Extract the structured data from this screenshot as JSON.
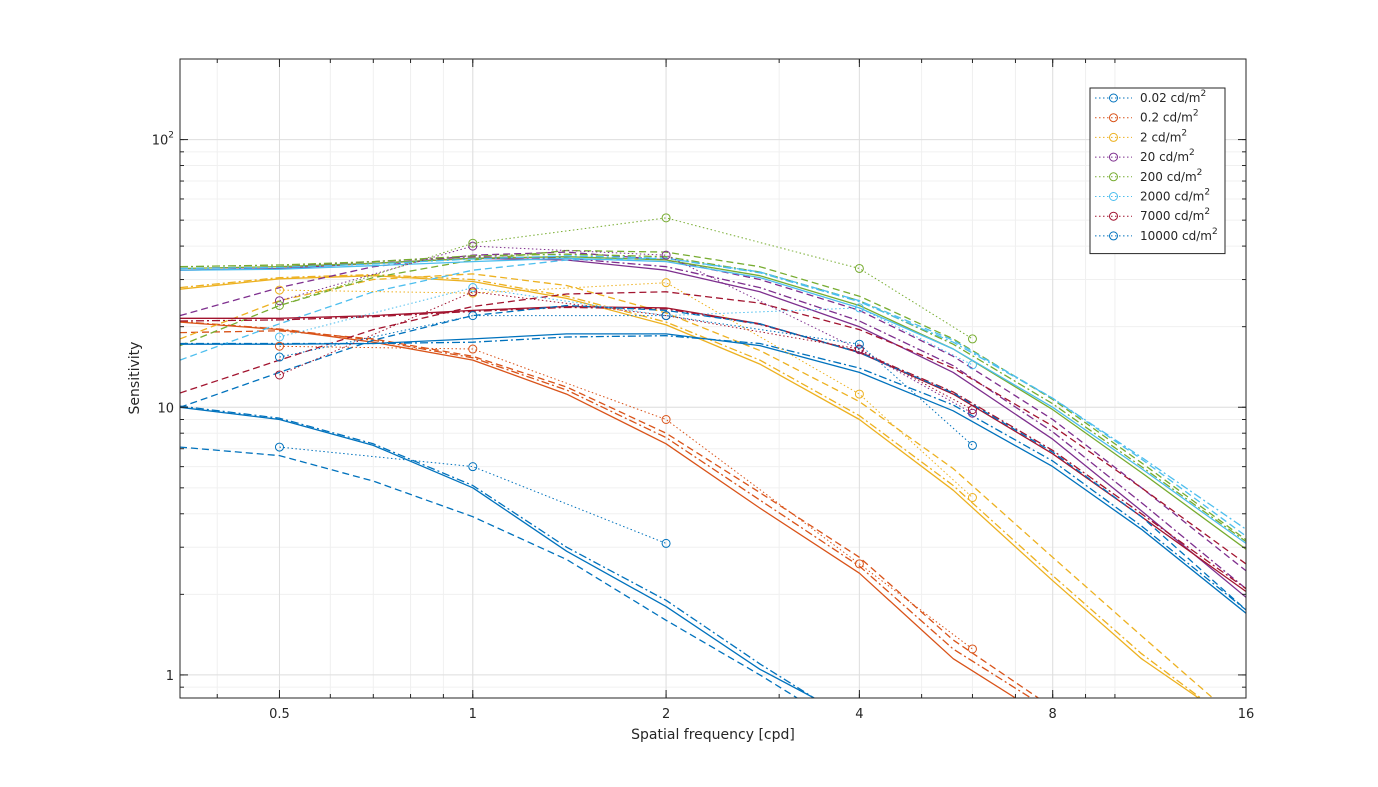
{
  "chart_data": {
    "type": "line",
    "xlabel": "Spatial frequency [cpd]",
    "ylabel": "Sensitivity",
    "x_scale": "log",
    "y_scale": "log",
    "xlim": [
      0.35,
      16
    ],
    "ylim": [
      0.82,
      200
    ],
    "x_ticks": [
      0.5,
      1,
      2,
      4,
      8,
      16
    ],
    "x_tick_labels": [
      "0.5",
      "1",
      "2",
      "4",
      "8",
      "16"
    ],
    "y_ticks": [
      1,
      10,
      100
    ],
    "y_tick_labels": [
      {
        "base": "1",
        "exp": ""
      },
      {
        "base": "10",
        "exp": ""
      },
      {
        "base": "10",
        "exp": "2"
      }
    ],
    "grid": true,
    "minor_grid": true,
    "legend_position": "top-right",
    "series": [
      {
        "name": "0.02 cd/m",
        "name_sup": "2",
        "color": "#0072BD",
        "measured_x": [
          0.5,
          1,
          2
        ],
        "measured_y": [
          7.1,
          6.0,
          3.1
        ],
        "fits": [
          {
            "style": "solid",
            "x": [
              0.35,
              0.5,
              0.7,
              1,
              1.4,
              2,
              2.8,
              3.4
            ],
            "y": [
              10.0,
              9.0,
              7.2,
              5.0,
              2.9,
              1.8,
              1.05,
              0.82
            ]
          },
          {
            "style": "dashdot",
            "x": [
              0.35,
              0.5,
              0.7,
              1,
              1.4,
              2,
              2.8,
              3.4
            ],
            "y": [
              10.1,
              9.1,
              7.3,
              5.1,
              3.0,
              1.9,
              1.1,
              0.82
            ]
          },
          {
            "style": "dashed",
            "x": [
              0.35,
              0.5,
              0.7,
              1,
              1.4,
              2,
              2.8,
              3.2
            ],
            "y": [
              7.1,
              6.6,
              5.3,
              3.9,
              2.7,
              1.6,
              1.0,
              0.82
            ]
          }
        ]
      },
      {
        "name": "0.2 cd/m",
        "name_sup": "2",
        "color": "#D95319",
        "measured_x": [
          0.5,
          1,
          2,
          4,
          6
        ],
        "measured_y": [
          16.9,
          16.5,
          9.0,
          2.6,
          1.25
        ],
        "fits": [
          {
            "style": "solid",
            "x": [
              0.35,
              0.5,
              0.7,
              1,
              1.4,
              2,
              2.8,
              4,
              5.6,
              7.0
            ],
            "y": [
              20.8,
              19.5,
              17.5,
              15.0,
              11.2,
              7.3,
              4.2,
              2.4,
              1.15,
              0.82
            ]
          },
          {
            "style": "dashdot",
            "x": [
              0.35,
              0.5,
              0.7,
              1,
              1.4,
              2,
              2.8,
              4,
              5.6,
              7.4
            ],
            "y": [
              20.9,
              19.6,
              17.8,
              15.3,
              11.6,
              7.7,
              4.5,
              2.55,
              1.25,
              0.82
            ]
          },
          {
            "style": "dashed",
            "x": [
              0.35,
              0.5,
              0.7,
              1,
              1.4,
              2,
              2.8,
              4,
              5.6,
              7.6
            ],
            "y": [
              19.0,
              19.3,
              18.0,
              15.5,
              11.9,
              8.0,
              4.8,
              2.75,
              1.35,
              0.82
            ]
          }
        ]
      },
      {
        "name": "2 cd/m",
        "name_sup": "2",
        "color": "#EDB120",
        "measured_x": [
          0.5,
          1,
          2,
          4,
          6
        ],
        "measured_y": [
          27.4,
          26.7,
          29.2,
          11.2,
          4.6
        ],
        "fits": [
          {
            "style": "solid",
            "x": [
              0.35,
              0.5,
              0.7,
              1,
              1.4,
              2,
              2.8,
              4,
              5.6,
              8,
              11,
              13.5
            ],
            "y": [
              27.6,
              30.2,
              31.0,
              29.5,
              25.5,
              20.3,
              14.5,
              9.0,
              4.9,
              2.25,
              1.15,
              0.82
            ]
          },
          {
            "style": "dashdot",
            "x": [
              0.35,
              0.5,
              0.7,
              1,
              1.4,
              2,
              2.8,
              4,
              5.6,
              8,
              11,
              13.6
            ],
            "y": [
              28.0,
              30.5,
              31.3,
              30.0,
              26.0,
              20.8,
              15.0,
              9.3,
              5.1,
              2.35,
              1.2,
              0.82
            ]
          },
          {
            "style": "dashed",
            "x": [
              0.35,
              0.5,
              0.7,
              1,
              1.4,
              2,
              2.8,
              4,
              5.6,
              8,
              11,
              14.2
            ],
            "y": [
              18.0,
              25.0,
              30.0,
              31.5,
              28.5,
              22.5,
              16.3,
              10.5,
              5.9,
              2.75,
              1.4,
              0.82
            ]
          }
        ]
      },
      {
        "name": "20 cd/m",
        "name_sup": "2",
        "color": "#7E2F8E",
        "measured_x": [
          0.5,
          1,
          2,
          4,
          6
        ],
        "measured_y": [
          25.0,
          40.0,
          37.0,
          16.4,
          9.5
        ],
        "fits": [
          {
            "style": "solid",
            "x": [
              0.35,
              0.5,
              0.7,
              1,
              1.4,
              2,
              2.8,
              4,
              5.6,
              8,
              11,
              16
            ],
            "y": [
              32.5,
              33.0,
              34.5,
              36.0,
              35.5,
              32.5,
              27.0,
              20.0,
              13.5,
              7.6,
              4.1,
              1.95
            ]
          },
          {
            "style": "dashdot",
            "x": [
              0.35,
              0.5,
              0.7,
              1,
              1.4,
              2,
              2.8,
              4,
              5.6,
              8,
              11,
              16
            ],
            "y": [
              33.0,
              33.5,
              35.0,
              36.5,
              36.0,
              33.5,
              28.0,
              21.0,
              14.3,
              8.1,
              4.4,
              2.1
            ]
          },
          {
            "style": "dashed",
            "x": [
              0.35,
              0.5,
              0.7,
              1,
              1.4,
              2,
              2.8,
              4,
              5.6,
              8,
              11,
              16
            ],
            "y": [
              22.0,
              28.0,
              33.5,
              37.0,
              38.0,
              35.5,
              30.0,
              23.0,
              15.5,
              9.0,
              5.0,
              2.45
            ]
          }
        ]
      },
      {
        "name": "200 cd/m",
        "name_sup": "2",
        "color": "#77AC30",
        "measured_x": [
          0.5,
          1,
          2,
          4,
          6
        ],
        "measured_y": [
          24.0,
          41.0,
          51.0,
          33.0,
          18.0
        ],
        "fits": [
          {
            "style": "solid",
            "x": [
              0.35,
              0.5,
              0.7,
              1,
              1.4,
              2,
              2.8,
              4,
              5.6,
              8,
              11,
              16
            ],
            "y": [
              33.0,
              33.5,
              34.5,
              36.0,
              36.5,
              35.5,
              31.0,
              24.0,
              16.5,
              9.8,
              5.7,
              2.95
            ]
          },
          {
            "style": "dashdot",
            "x": [
              0.35,
              0.5,
              0.7,
              1,
              1.4,
              2,
              2.8,
              4,
              5.6,
              8,
              11,
              16
            ],
            "y": [
              33.5,
              34.0,
              35.0,
              36.8,
              37.3,
              36.5,
              32.0,
              25.0,
              17.2,
              10.3,
              6.0,
              3.15
            ]
          },
          {
            "style": "dashed",
            "x": [
              0.35,
              0.5,
              0.7,
              1,
              1.4,
              2,
              2.8,
              4,
              5.6,
              8,
              11,
              16
            ],
            "y": [
              17.0,
              24.0,
              30.5,
              35.5,
              38.5,
              38.0,
              33.5,
              26.0,
              18.0,
              10.7,
              6.2,
              3.2
            ]
          }
        ]
      },
      {
        "name": "2000 cd/m",
        "name_sup": "2",
        "color": "#4DBEEE",
        "measured_x": [
          0.5,
          1,
          2,
          4,
          6
        ],
        "measured_y": [
          18.3,
          28.0,
          22.0,
          23.5,
          14.4
        ],
        "fits": [
          {
            "style": "solid",
            "x": [
              0.35,
              0.5,
              0.7,
              1,
              1.4,
              2,
              2.8,
              4,
              5.6,
              8,
              11,
              16
            ],
            "y": [
              32.5,
              32.8,
              33.8,
              35.0,
              36.0,
              35.0,
              30.5,
              23.5,
              16.5,
              10.0,
              5.9,
              3.1
            ]
          },
          {
            "style": "dashdot",
            "x": [
              0.35,
              0.5,
              0.7,
              1,
              1.4,
              2,
              2.8,
              4,
              5.6,
              8,
              11,
              16
            ],
            "y": [
              33.0,
              33.3,
              34.3,
              35.8,
              36.8,
              36.0,
              31.8,
              24.8,
              17.5,
              10.8,
              6.5,
              3.5
            ]
          },
          {
            "style": "dashed",
            "x": [
              0.35,
              0.5,
              0.7,
              1,
              1.4,
              2,
              2.8,
              4,
              5.6,
              8,
              11,
              16
            ],
            "y": [
              15.0,
              20.5,
              27.0,
              32.5,
              35.5,
              36.0,
              32.0,
              25.0,
              17.8,
              10.8,
              6.4,
              3.3
            ]
          }
        ]
      },
      {
        "name": "7000 cd/m",
        "name_sup": "2",
        "color": "#A2142F",
        "measured_x": [
          0.5,
          1,
          2,
          4,
          6
        ],
        "measured_y": [
          13.2,
          27.0,
          22.0,
          16.5,
          9.8
        ],
        "fits": [
          {
            "style": "solid",
            "x": [
              0.35,
              0.5,
              0.7,
              1,
              1.4,
              2,
              2.8,
              4,
              5.6,
              8,
              11,
              16
            ],
            "y": [
              21.5,
              21.5,
              22.0,
              23.0,
              23.8,
              23.5,
              20.5,
              16.0,
              11.2,
              6.7,
              3.9,
              2.05
            ]
          },
          {
            "style": "dashdot",
            "x": [
              0.35,
              0.5,
              0.7,
              1,
              1.4,
              2,
              2.8,
              4,
              5.6,
              8,
              11,
              16
            ],
            "y": [
              21.0,
              21.2,
              21.8,
              22.8,
              23.6,
              23.3,
              20.4,
              16.1,
              11.4,
              6.9,
              4.0,
              2.1
            ]
          },
          {
            "style": "dashed",
            "x": [
              0.35,
              0.5,
              0.7,
              1,
              1.4,
              2,
              2.8,
              4,
              5.6,
              8,
              11,
              16
            ],
            "y": [
              11.3,
              15.0,
              19.5,
              23.8,
              26.5,
              27.0,
              24.5,
              19.5,
              14.0,
              8.5,
              5.0,
              2.6
            ]
          }
        ]
      },
      {
        "name": "10000 cd/m",
        "name_sup": "2",
        "color": "#0072BD",
        "measured_x": [
          0.5,
          1,
          2,
          4,
          6
        ],
        "measured_y": [
          15.4,
          22.0,
          22.0,
          17.2,
          7.2
        ],
        "fits": [
          {
            "style": "solid",
            "x": [
              0.35,
              0.5,
              0.7,
              1,
              1.4,
              2,
              2.8,
              4,
              5.6,
              8,
              11,
              16
            ],
            "y": [
              17.2,
              17.2,
              17.3,
              18.0,
              18.8,
              18.8,
              17.0,
              13.5,
              9.7,
              6.0,
              3.5,
              1.7
            ]
          },
          {
            "style": "dashdot",
            "x": [
              0.35,
              0.5,
              0.7,
              1,
              1.4,
              2,
              2.8,
              4,
              5.6,
              8,
              11,
              16
            ],
            "y": [
              17.3,
              17.3,
              17.3,
              17.5,
              18.3,
              18.5,
              17.3,
              14.0,
              10.2,
              6.3,
              3.6,
              1.75
            ]
          },
          {
            "style": "dashed",
            "x": [
              0.35,
              0.5,
              0.7,
              1,
              1.4,
              2,
              2.8,
              4,
              5.6,
              8,
              11,
              16
            ],
            "y": [
              10.0,
              13.5,
              17.8,
              22.0,
              24.0,
              23.0,
              20.5,
              16.0,
              11.3,
              6.8,
              3.9,
              1.75
            ]
          }
        ]
      }
    ]
  }
}
